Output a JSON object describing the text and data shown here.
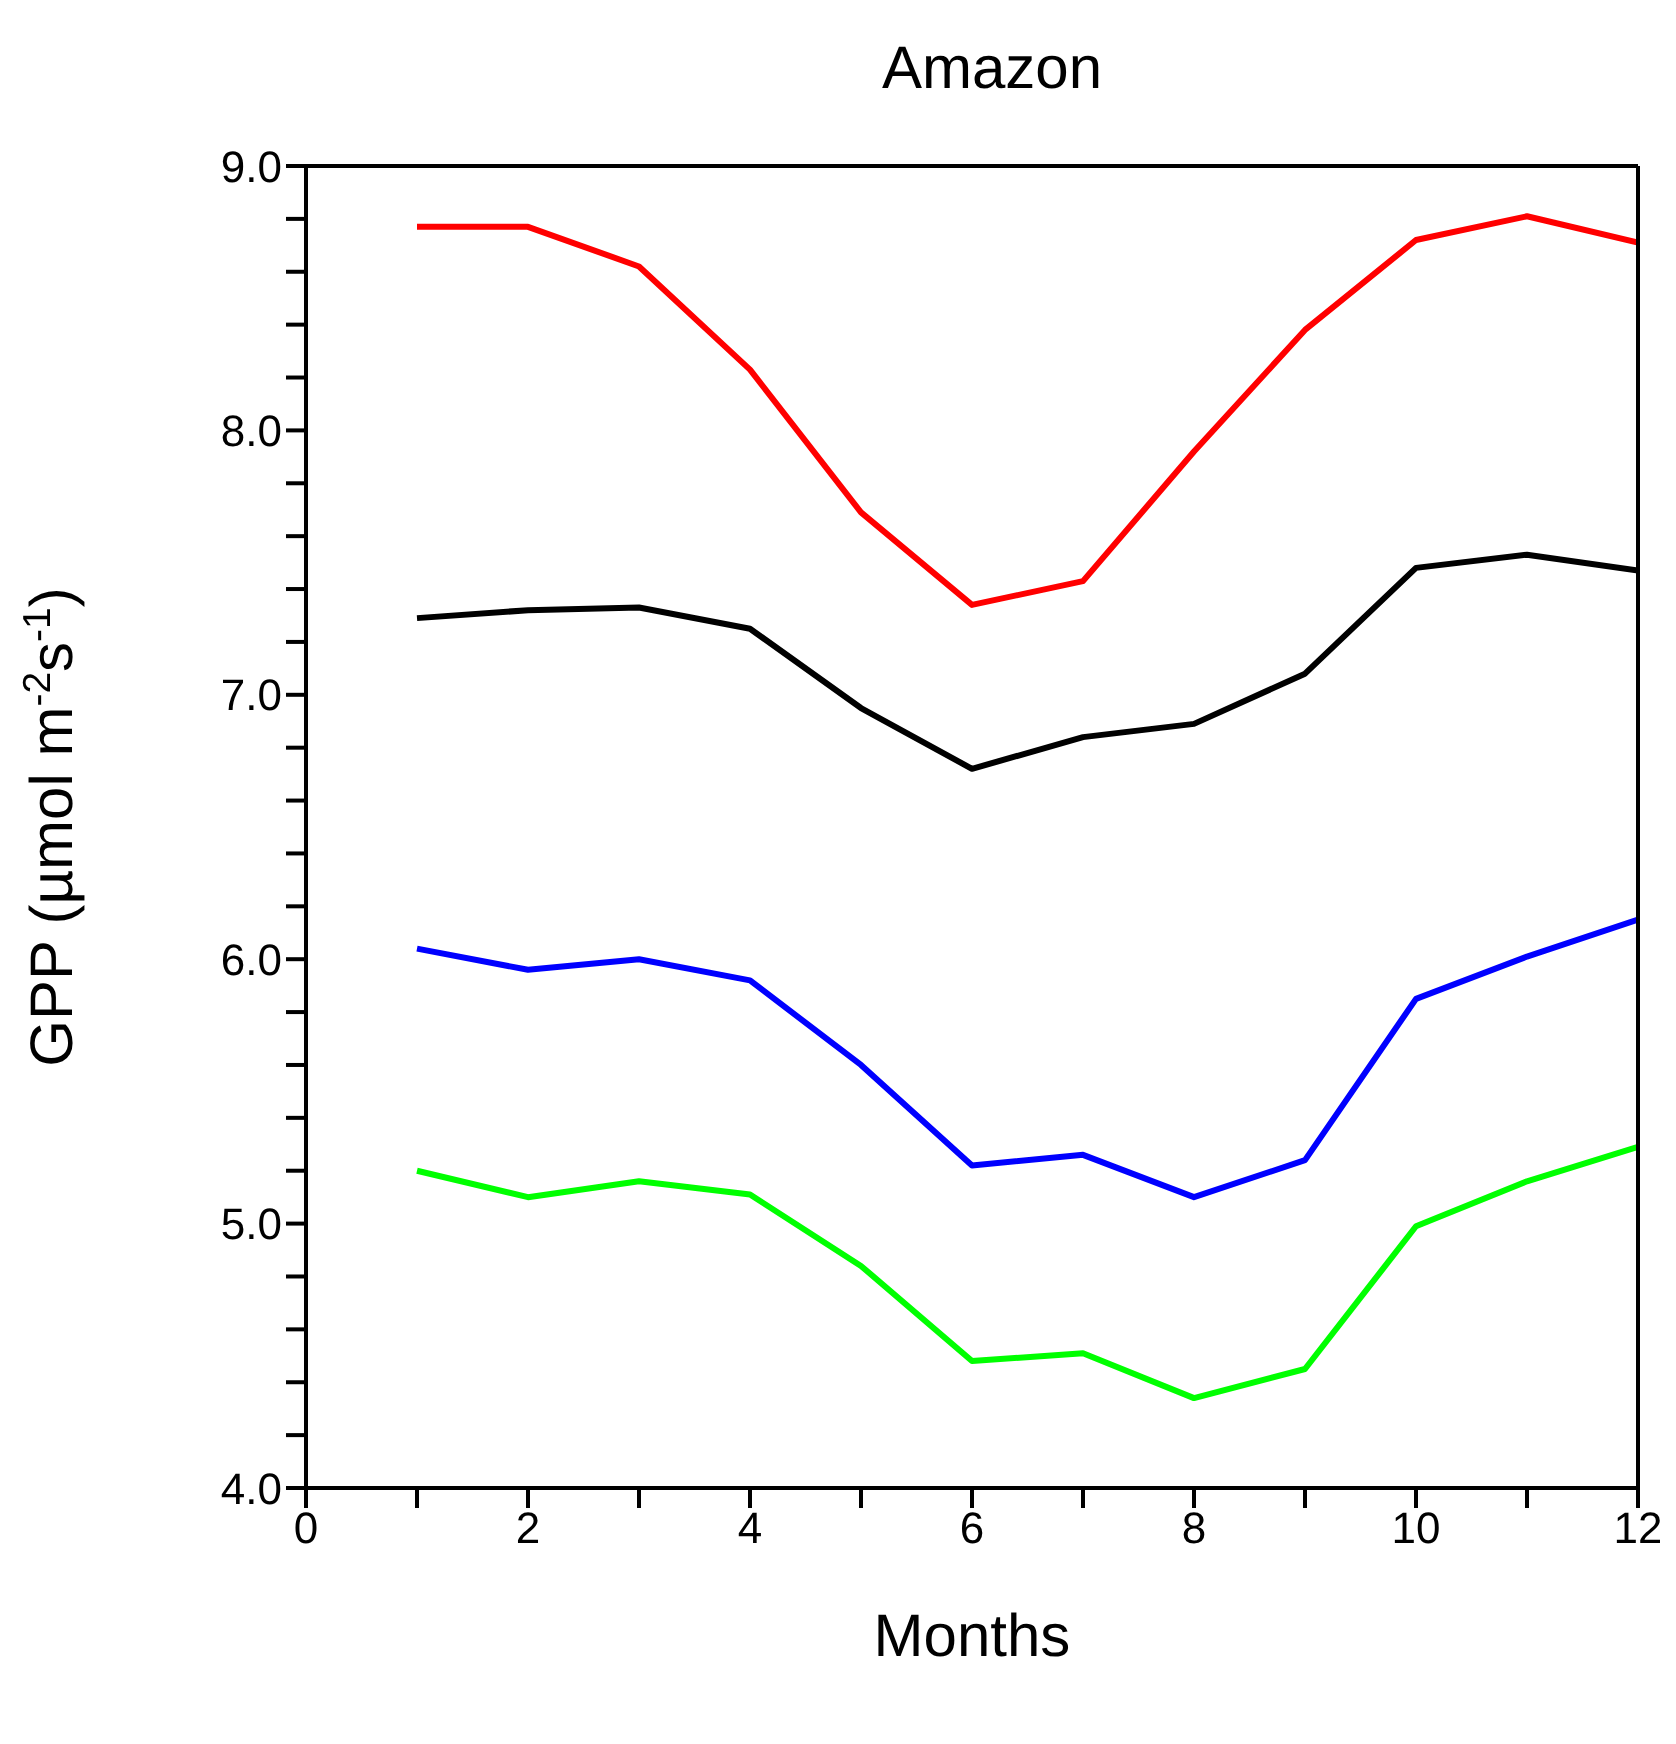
{
  "chart_data": {
    "type": "line",
    "title": "Amazon",
    "xlabel": "Months",
    "ylabel": "GPP (µmol m$^{-2}$s$^{-1}$)",
    "x": [
      1,
      2,
      3,
      4,
      5,
      6,
      7,
      8,
      9,
      10,
      11,
      12
    ],
    "series": [
      {
        "color": "#ff0000",
        "values": [
          8.77,
          8.77,
          8.62,
          8.23,
          7.69,
          7.34,
          7.43,
          7.92,
          8.38,
          8.72,
          8.81,
          8.71
        ]
      },
      {
        "color": "#000000",
        "values": [
          7.29,
          7.32,
          7.33,
          7.25,
          6.95,
          6.72,
          6.84,
          6.89,
          7.08,
          7.48,
          7.53,
          7.47
        ]
      },
      {
        "color": "#0000ff",
        "values": [
          6.04,
          5.96,
          6.0,
          5.92,
          5.6,
          5.22,
          5.26,
          5.1,
          5.24,
          5.85,
          6.01,
          6.15
        ]
      },
      {
        "color": "#00ff00",
        "values": [
          5.2,
          5.1,
          5.16,
          5.11,
          4.84,
          4.48,
          4.51,
          4.34,
          4.45,
          4.99,
          5.16,
          5.29
        ]
      }
    ],
    "xlim": [
      0,
      12
    ],
    "xticks": [
      0,
      {
        "value": 1,
        "label": null
      },
      2,
      {
        "value": 3,
        "label": null
      },
      4,
      {
        "value": 5,
        "label": null
      },
      6,
      {
        "value": 7,
        "label": null
      },
      8,
      {
        "value": 9,
        "label": null
      },
      10,
      {
        "value": 11,
        "label": null
      },
      12
    ],
    "ylim": [
      4,
      9
    ],
    "yticks": [
      {
        "value": 4,
        "label": "4.0"
      },
      {
        "value": 4.2,
        "label": null
      },
      {
        "value": 4.4,
        "label": null
      },
      {
        "value": 4.6,
        "label": null
      },
      {
        "value": 4.8,
        "label": null
      },
      {
        "value": 5,
        "label": "5.0"
      },
      {
        "value": 5.2,
        "label": null
      },
      {
        "value": 5.4,
        "label": null
      },
      {
        "value": 5.6,
        "label": null
      },
      {
        "value": 5.8,
        "label": null
      },
      {
        "value": 6,
        "label": "6.0"
      },
      {
        "value": 6.2,
        "label": null
      },
      {
        "value": 6.4,
        "label": null
      },
      {
        "value": 6.6,
        "label": null
      },
      {
        "value": 6.8,
        "label": null
      },
      {
        "value": 7,
        "label": "7.0"
      },
      {
        "value": 7.2,
        "label": null
      },
      {
        "value": 7.4,
        "label": null
      },
      {
        "value": 7.6,
        "label": null
      },
      {
        "value": 7.8,
        "label": null
      },
      {
        "value": 8,
        "label": "8.0"
      },
      {
        "value": 8.2,
        "label": null
      },
      {
        "value": 8.4,
        "label": null
      },
      {
        "value": 8.6,
        "label": null
      },
      {
        "value": 8.8,
        "label": null
      },
      {
        "value": 9,
        "label": "9.0"
      }
    ],
    "grid": false,
    "marker": "none",
    "line_style": "solid"
  }
}
